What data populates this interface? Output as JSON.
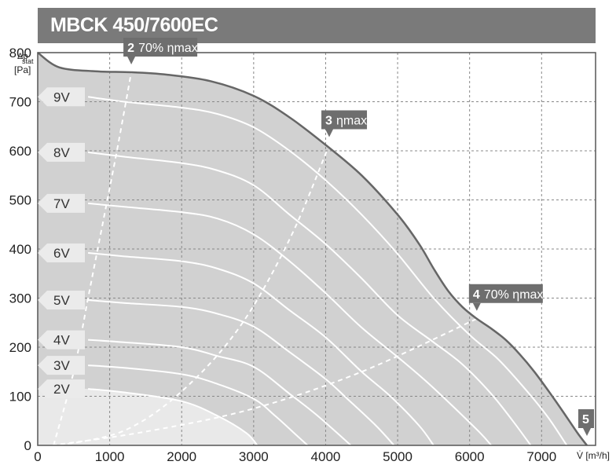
{
  "chart_data": {
    "type": "line",
    "title": "MBCK 450/7600EC",
    "ylabel_main": "Δp",
    "ylabel_sub": "stat",
    "ylabel_unit": "[Pa]",
    "xlabel": "V̇ [m³/h]",
    "xlim": [
      0,
      7750
    ],
    "ylim": [
      0,
      800
    ],
    "xticks": [
      0,
      1000,
      2000,
      3000,
      4000,
      5000,
      6000,
      7000
    ],
    "yticks": [
      0,
      100,
      200,
      300,
      400,
      500,
      600,
      700,
      800
    ],
    "grid": true,
    "max_curve": [
      [
        0,
        800
      ],
      [
        300,
        770
      ],
      [
        800,
        762
      ],
      [
        1300,
        760
      ],
      [
        1800,
        755
      ],
      [
        2400,
        742
      ],
      [
        3000,
        712
      ],
      [
        3500,
        668
      ],
      [
        4000,
        612
      ],
      [
        4500,
        550
      ],
      [
        5000,
        470
      ],
      [
        5300,
        410
      ],
      [
        5500,
        360
      ],
      [
        5700,
        315
      ],
      [
        5900,
        282
      ],
      [
        6100,
        258
      ],
      [
        6300,
        238
      ],
      [
        6500,
        215
      ],
      [
        6700,
        185
      ],
      [
        6900,
        150
      ],
      [
        7100,
        110
      ],
      [
        7300,
        68
      ],
      [
        7500,
        25
      ],
      [
        7630,
        0
      ]
    ],
    "series": [
      {
        "name": "9V",
        "values": [
          [
            700,
            710
          ],
          [
            1200,
            700
          ],
          [
            2000,
            688
          ],
          [
            2500,
            675
          ],
          [
            3000,
            648
          ],
          [
            3500,
            600
          ],
          [
            4000,
            540
          ],
          [
            4500,
            470
          ],
          [
            5000,
            390
          ],
          [
            5500,
            300
          ],
          [
            6000,
            225
          ],
          [
            6400,
            175
          ],
          [
            6800,
            110
          ],
          [
            7100,
            55
          ],
          [
            7350,
            0
          ]
        ]
      },
      {
        "name": "8V",
        "values": [
          [
            700,
            597
          ],
          [
            1200,
            588
          ],
          [
            2000,
            575
          ],
          [
            2500,
            560
          ],
          [
            3000,
            530
          ],
          [
            3500,
            470
          ],
          [
            4000,
            410
          ],
          [
            4500,
            340
          ],
          [
            5000,
            265
          ],
          [
            5500,
            210
          ],
          [
            5900,
            165
          ],
          [
            6300,
            105
          ],
          [
            6600,
            50
          ],
          [
            6850,
            0
          ]
        ]
      },
      {
        "name": "7V",
        "values": [
          [
            700,
            493
          ],
          [
            1200,
            486
          ],
          [
            2000,
            475
          ],
          [
            2500,
            462
          ],
          [
            3000,
            430
          ],
          [
            3500,
            375
          ],
          [
            4000,
            310
          ],
          [
            4500,
            240
          ],
          [
            5000,
            180
          ],
          [
            5400,
            130
          ],
          [
            5800,
            75
          ],
          [
            6150,
            25
          ],
          [
            6300,
            0
          ]
        ]
      },
      {
        "name": "6V",
        "values": [
          [
            700,
            392
          ],
          [
            1200,
            385
          ],
          [
            2000,
            375
          ],
          [
            2500,
            360
          ],
          [
            3000,
            330
          ],
          [
            3500,
            275
          ],
          [
            4000,
            220
          ],
          [
            4500,
            150
          ],
          [
            4900,
            100
          ],
          [
            5300,
            40
          ],
          [
            5500,
            0
          ]
        ]
      },
      {
        "name": "5V",
        "values": [
          [
            700,
            296
          ],
          [
            1200,
            290
          ],
          [
            2000,
            282
          ],
          [
            2500,
            268
          ],
          [
            3000,
            242
          ],
          [
            3500,
            190
          ],
          [
            4000,
            135
          ],
          [
            4300,
            95
          ],
          [
            4700,
            40
          ],
          [
            4950,
            0
          ]
        ]
      },
      {
        "name": "4V",
        "values": [
          [
            700,
            215
          ],
          [
            1200,
            210
          ],
          [
            2000,
            200
          ],
          [
            2500,
            182
          ],
          [
            3000,
            160
          ],
          [
            3500,
            105
          ],
          [
            3850,
            65
          ],
          [
            4200,
            20
          ],
          [
            4350,
            0
          ]
        ]
      },
      {
        "name": "3V",
        "values": [
          [
            700,
            163
          ],
          [
            1200,
            158
          ],
          [
            2000,
            145
          ],
          [
            2500,
            125
          ],
          [
            3000,
            95
          ],
          [
            3300,
            60
          ],
          [
            3600,
            20
          ],
          [
            3750,
            0
          ]
        ]
      },
      {
        "name": "2V",
        "values": [
          [
            700,
            115
          ],
          [
            1200,
            108
          ],
          [
            2000,
            90
          ],
          [
            2500,
            60
          ],
          [
            2900,
            25
          ],
          [
            3050,
            0
          ]
        ]
      }
    ],
    "efficiency_lines": [
      {
        "label": "70% ηmax",
        "num": "2",
        "values": [
          [
            220,
            0
          ],
          [
            500,
            150
          ],
          [
            700,
            300
          ],
          [
            900,
            450
          ],
          [
            1100,
            600
          ],
          [
            1300,
            760
          ]
        ]
      },
      {
        "label": "ηmax",
        "num": "3",
        "values": [
          [
            300,
            0
          ],
          [
            1200,
            30
          ],
          [
            2000,
            110
          ],
          [
            2800,
            240
          ],
          [
            3500,
            420
          ],
          [
            4050,
            612
          ]
        ]
      },
      {
        "label": "70% ηmax",
        "num": "4",
        "values": [
          [
            200,
            0
          ],
          [
            1500,
            28
          ],
          [
            3000,
            75
          ],
          [
            4500,
            150
          ],
          [
            6100,
            258
          ]
        ]
      }
    ],
    "point_labels": [
      {
        "num": "2",
        "text": "70% ηmax",
        "at": [
          1300,
          760
        ]
      },
      {
        "num": "3",
        "text": "ηmax",
        "at": [
          4050,
          612
        ]
      },
      {
        "num": "4",
        "text": "70% ηmax",
        "at": [
          6100,
          258
        ]
      },
      {
        "num": "5",
        "text": "",
        "at": [
          7630,
          0
        ]
      }
    ],
    "colors": {
      "region": "#d1d1d1",
      "region_light": "#e9e9e9",
      "max_curve": "#666666",
      "series": "#ffffff",
      "tag": "#6e6e6e",
      "grid": "#888888"
    }
  }
}
